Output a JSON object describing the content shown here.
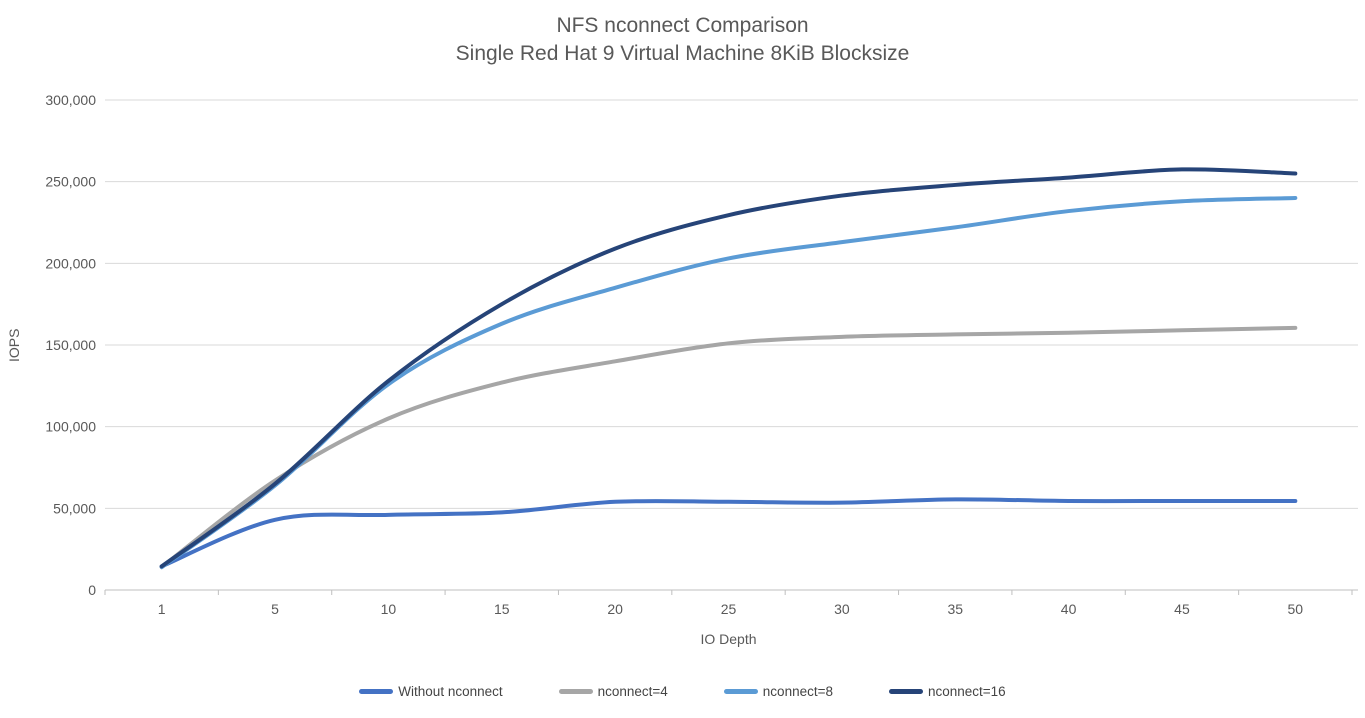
{
  "title": {
    "line1": "NFS nconnect Comparison",
    "line2": "Single Red Hat 9 Virtual Machine 8KiB Blocksize"
  },
  "chart_data": {
    "type": "line",
    "title": "NFS nconnect Comparison — Single Red Hat 9 Virtual Machine 8KiB Blocksize",
    "xlabel": "IO Depth",
    "ylabel": "IOPS",
    "categories": [
      1,
      5,
      10,
      15,
      20,
      25,
      30,
      35,
      40,
      45,
      50
    ],
    "y_ticks": [
      "0",
      "50,000",
      "100,000",
      "150,000",
      "200,000",
      "250,000",
      "300,000"
    ],
    "ylim": [
      0,
      300000
    ],
    "y_tick_step": 50000,
    "grid": "horizontal",
    "legend_position": "bottom",
    "colors": {
      "grid": "#D9D9D9",
      "axis": "#BFBFBF",
      "text": "#595959"
    },
    "series": [
      {
        "name": "Without nconnect",
        "color": "#4472C4",
        "values": [
          14500,
          43000,
          46000,
          47500,
          54000,
          54000,
          53500,
          55500,
          54500,
          54500,
          54500
        ]
      },
      {
        "name": "nconnect=4",
        "color": "#A6A6A6",
        "values": [
          14000,
          67000,
          105000,
          127000,
          140000,
          151000,
          155000,
          156500,
          157500,
          159000,
          160500
        ]
      },
      {
        "name": "nconnect=8",
        "color": "#5B9BD5",
        "values": [
          14000,
          64000,
          126000,
          163000,
          185000,
          203000,
          213000,
          222000,
          232000,
          238000,
          240000
        ]
      },
      {
        "name": "nconnect=16",
        "color": "#264478",
        "values": [
          14500,
          65000,
          128000,
          175000,
          209000,
          229500,
          241500,
          248000,
          252500,
          257500,
          255000
        ]
      }
    ]
  }
}
